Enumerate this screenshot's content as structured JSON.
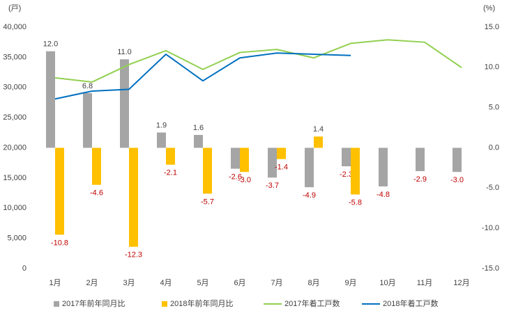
{
  "chart_data": {
    "type": "bar-line",
    "y_label": "(戸)",
    "y2_label": "(%)",
    "categories": [
      "1月",
      "2月",
      "3月",
      "4月",
      "5月",
      "6月",
      "7月",
      "8月",
      "9月",
      "10月",
      "11月",
      "12月"
    ],
    "ylim": [
      0,
      40000
    ],
    "yticks": [
      0,
      {
        "value": 5000,
        "label": "5,000"
      },
      {
        "value": 10000,
        "label": "10,000"
      },
      {
        "value": 15000,
        "label": "15,000"
      },
      {
        "value": 20000,
        "label": "20,000"
      },
      {
        "value": 25000,
        "label": "25,000"
      },
      {
        "value": 30000,
        "label": "30,000"
      },
      {
        "value": 35000,
        "label": "35,000"
      },
      {
        "value": 40000,
        "label": "40,000"
      }
    ],
    "y2lim": [
      -15,
      15
    ],
    "y2ticks": [
      {
        "value": -15,
        "label": "-15.0"
      },
      {
        "value": -10,
        "label": "-10.0"
      },
      {
        "value": -5,
        "label": "-5.0"
      },
      {
        "value": 0,
        "label": "0.0"
      },
      {
        "value": 5,
        "label": "5.0"
      },
      {
        "value": 10,
        "label": "10.0"
      },
      {
        "value": 15,
        "label": "15.0"
      }
    ],
    "grid": false,
    "negative_label_color": "#c00000",
    "series": [
      {
        "name": "2017年前年同月比",
        "kind": "bar",
        "axis": "y2",
        "color": "#a5a5a5",
        "values": [
          12.0,
          6.8,
          11.0,
          1.9,
          1.6,
          -2.6,
          -3.7,
          -4.9,
          -2.3,
          -4.8,
          -2.9,
          -3.0
        ],
        "value_labels": [
          "12.0",
          "6.8",
          "11.0",
          "1.9",
          "1.6",
          "-2.6",
          "-3.7",
          "-4.9",
          "-2.3",
          "-4.8",
          "-2.9",
          "-3.0"
        ]
      },
      {
        "name": "2018年前年同月比",
        "kind": "bar",
        "axis": "y2",
        "color": "#ffc000",
        "values": [
          -10.8,
          -4.6,
          -12.3,
          -2.1,
          -5.7,
          -3.0,
          -1.4,
          1.4,
          -5.8,
          null,
          null,
          null
        ],
        "value_labels": [
          "-10.8",
          "-4.6",
          "-12.3",
          "-2.1",
          "-5.7",
          "-3.0",
          "-1.4",
          "1.4",
          "-5.8",
          null,
          null,
          null
        ]
      },
      {
        "name": "2017年着工戸数",
        "kind": "line",
        "color": "#92d050",
        "values": [
          31600,
          30900,
          33800,
          36100,
          33000,
          35800,
          36300,
          34900,
          37300,
          37900,
          37500,
          33300
        ]
      },
      {
        "name": "2018年着工戸数",
        "kind": "line",
        "color": "#0070c0",
        "values": [
          28100,
          29400,
          29700,
          35500,
          31100,
          34900,
          35700,
          35500,
          35300,
          null,
          null,
          null
        ]
      }
    ]
  }
}
